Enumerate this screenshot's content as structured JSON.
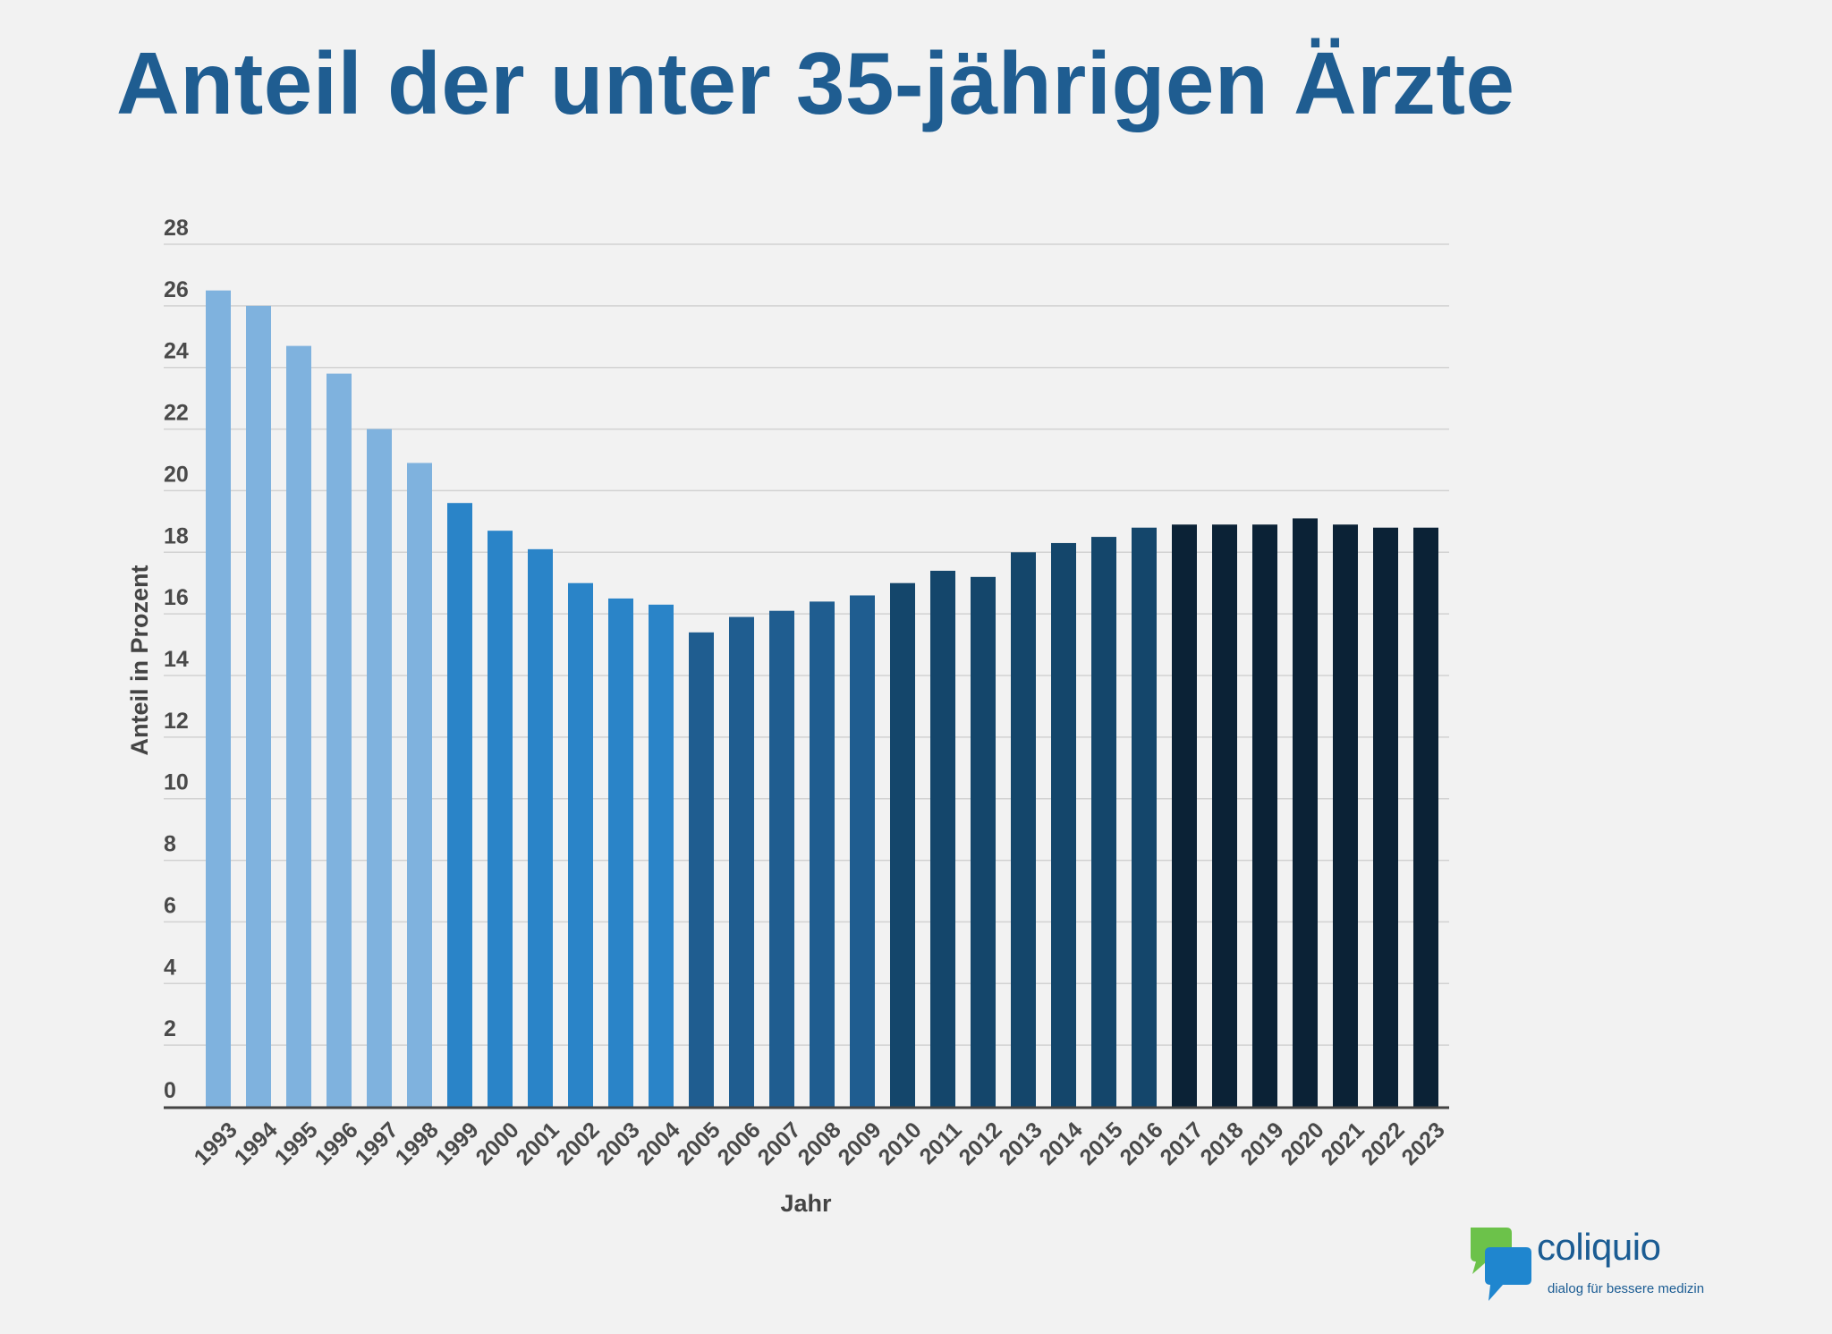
{
  "colors": {
    "background": "#f2f2f2",
    "title": "#1f5d91",
    "gridline": "#d2d2d2",
    "baseline": "#444444",
    "bar_groups": [
      {
        "from": "1993",
        "to": "1998",
        "color": "#7fb2de"
      },
      {
        "from": "1999",
        "to": "2004",
        "color": "#2a84c8"
      },
      {
        "from": "2005",
        "to": "2009",
        "color": "#1f5d90"
      },
      {
        "from": "2010",
        "to": "2016",
        "color": "#14466b"
      },
      {
        "from": "2017",
        "to": "2023",
        "color": "#0b2236"
      }
    ]
  },
  "chart_data": {
    "type": "bar",
    "title": "Anteil der unter 35-jährigen Ärzte",
    "xlabel": "Jahr",
    "ylabel": "Anteil in Prozent",
    "categories": [
      "1993",
      "1994",
      "1995",
      "1996",
      "1997",
      "1998",
      "1999",
      "2000",
      "2001",
      "2002",
      "2003",
      "2004",
      "2005",
      "2006",
      "2007",
      "2008",
      "2009",
      "2010",
      "2011",
      "2012",
      "2013",
      "2014",
      "2015",
      "2016",
      "2017",
      "2018",
      "2019",
      "2020",
      "2021",
      "2022",
      "2023"
    ],
    "values": [
      26.5,
      26.0,
      24.7,
      23.8,
      22.0,
      20.9,
      19.6,
      18.7,
      18.1,
      17.0,
      16.5,
      16.3,
      15.4,
      15.9,
      16.1,
      16.4,
      16.6,
      17.0,
      17.4,
      17.2,
      18.0,
      18.3,
      18.5,
      18.8,
      18.9,
      18.9,
      18.9,
      19.1,
      18.9,
      18.8,
      18.8
    ],
    "ylim": [
      0,
      28
    ],
    "yticks": [
      0,
      2,
      4,
      6,
      8,
      10,
      12,
      14,
      16,
      18,
      20,
      22,
      24,
      26,
      28
    ],
    "grid": true,
    "legend": "none"
  },
  "logo": {
    "name": "coliquio",
    "tagline": "dialog für bessere medizin",
    "green": "#6cc24a",
    "blue": "#1f86cf"
  }
}
